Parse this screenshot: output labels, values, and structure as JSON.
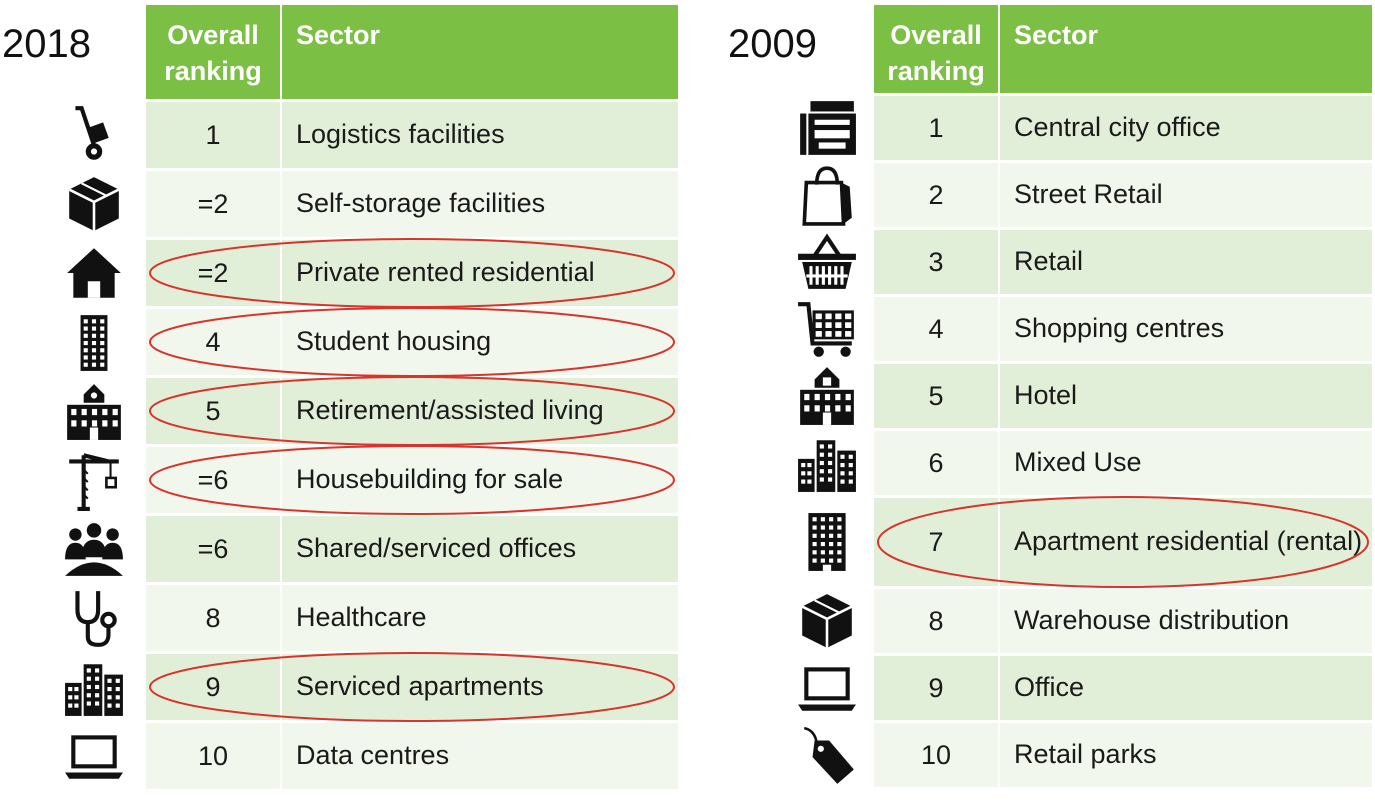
{
  "left": {
    "year": "2018",
    "header": {
      "rank": "Overall ranking",
      "sector": "Sector"
    },
    "rows": [
      {
        "rank": "1",
        "sector": "Logistics facilities",
        "icon": "hand-truck-icon",
        "highlighted": false
      },
      {
        "rank": "=2",
        "sector": "Self-storage facilities",
        "icon": "box-icon",
        "highlighted": false
      },
      {
        "rank": "=2",
        "sector": "Private rented residential",
        "icon": "house-icon",
        "highlighted": true
      },
      {
        "rank": "4",
        "sector": "Student housing",
        "icon": "tall-building-icon",
        "highlighted": true
      },
      {
        "rank": "5",
        "sector": "Retirement/assisted living",
        "icon": "school-building-icon",
        "highlighted": true
      },
      {
        "rank": "=6",
        "sector": "Housebuilding for sale",
        "icon": "crane-icon",
        "highlighted": true
      },
      {
        "rank": "=6",
        "sector": "Shared/serviced offices",
        "icon": "people-group-icon",
        "highlighted": false
      },
      {
        "rank": "8",
        "sector": "Healthcare",
        "icon": "stethoscope-icon",
        "highlighted": false
      },
      {
        "rank": "9",
        "sector": "Serviced apartments",
        "icon": "city-buildings-icon",
        "highlighted": true
      },
      {
        "rank": "10",
        "sector": "Data centres",
        "icon": "laptop-icon",
        "highlighted": false
      }
    ]
  },
  "right": {
    "year": "2009",
    "header": {
      "rank": "Overall ranking",
      "sector": "Sector"
    },
    "rows": [
      {
        "rank": "1",
        "sector": "Central city office",
        "icon": "office-printer-icon",
        "highlighted": false
      },
      {
        "rank": "2",
        "sector": "Street Retail",
        "icon": "shopping-bag-icon",
        "highlighted": false
      },
      {
        "rank": "3",
        "sector": "Retail",
        "icon": "shopping-basket-icon",
        "highlighted": false
      },
      {
        "rank": "4",
        "sector": "Shopping centres",
        "icon": "shopping-cart-icon",
        "highlighted": false
      },
      {
        "rank": "5",
        "sector": "Hotel",
        "icon": "hotel-building-icon",
        "highlighted": false
      },
      {
        "rank": "6",
        "sector": "Mixed Use",
        "icon": "city-buildings-icon",
        "highlighted": false
      },
      {
        "rank": "7",
        "sector": "Apartment residential (rental)",
        "icon": "apartment-building-icon",
        "highlighted": true
      },
      {
        "rank": "8",
        "sector": "Warehouse distribution",
        "icon": "box-icon",
        "highlighted": false
      },
      {
        "rank": "9",
        "sector": "Office",
        "icon": "laptop-icon",
        "highlighted": false
      },
      {
        "rank": "10",
        "sector": "Retail parks",
        "icon": "price-tag-icon",
        "highlighted": false
      }
    ]
  },
  "colors": {
    "header": "#7cbf45",
    "row_dark": "#e2efd8",
    "row_light": "#f1f7ec",
    "highlight": "#d9332b",
    "icon": "#111111"
  }
}
